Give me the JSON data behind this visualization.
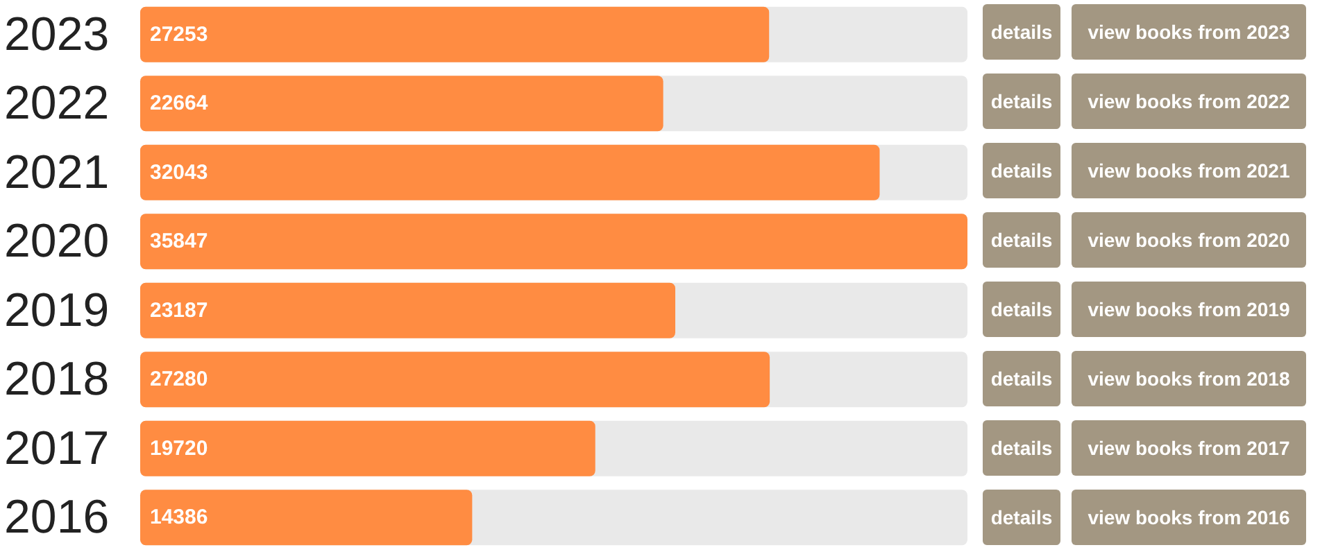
{
  "chart_data": {
    "type": "bar",
    "orientation": "horizontal",
    "categories": [
      "2023",
      "2022",
      "2021",
      "2020",
      "2019",
      "2018",
      "2017",
      "2016"
    ],
    "values": [
      27253,
      22664,
      32043,
      35847,
      23187,
      27280,
      19720,
      14386
    ],
    "color": "#ff8c42",
    "xlim": [
      0,
      35847
    ],
    "data_labels": true,
    "tick_labels": "y",
    "annotations": [
      "details",
      "view books from 2023",
      "details",
      "view books from 2022",
      "details",
      "view books from 2021",
      "details",
      "view books from 2020",
      "details",
      "view books from 2019",
      "details",
      "view books from 2018",
      "details",
      "view books from 2017",
      "details",
      "view books from 2016"
    ]
  }
}
